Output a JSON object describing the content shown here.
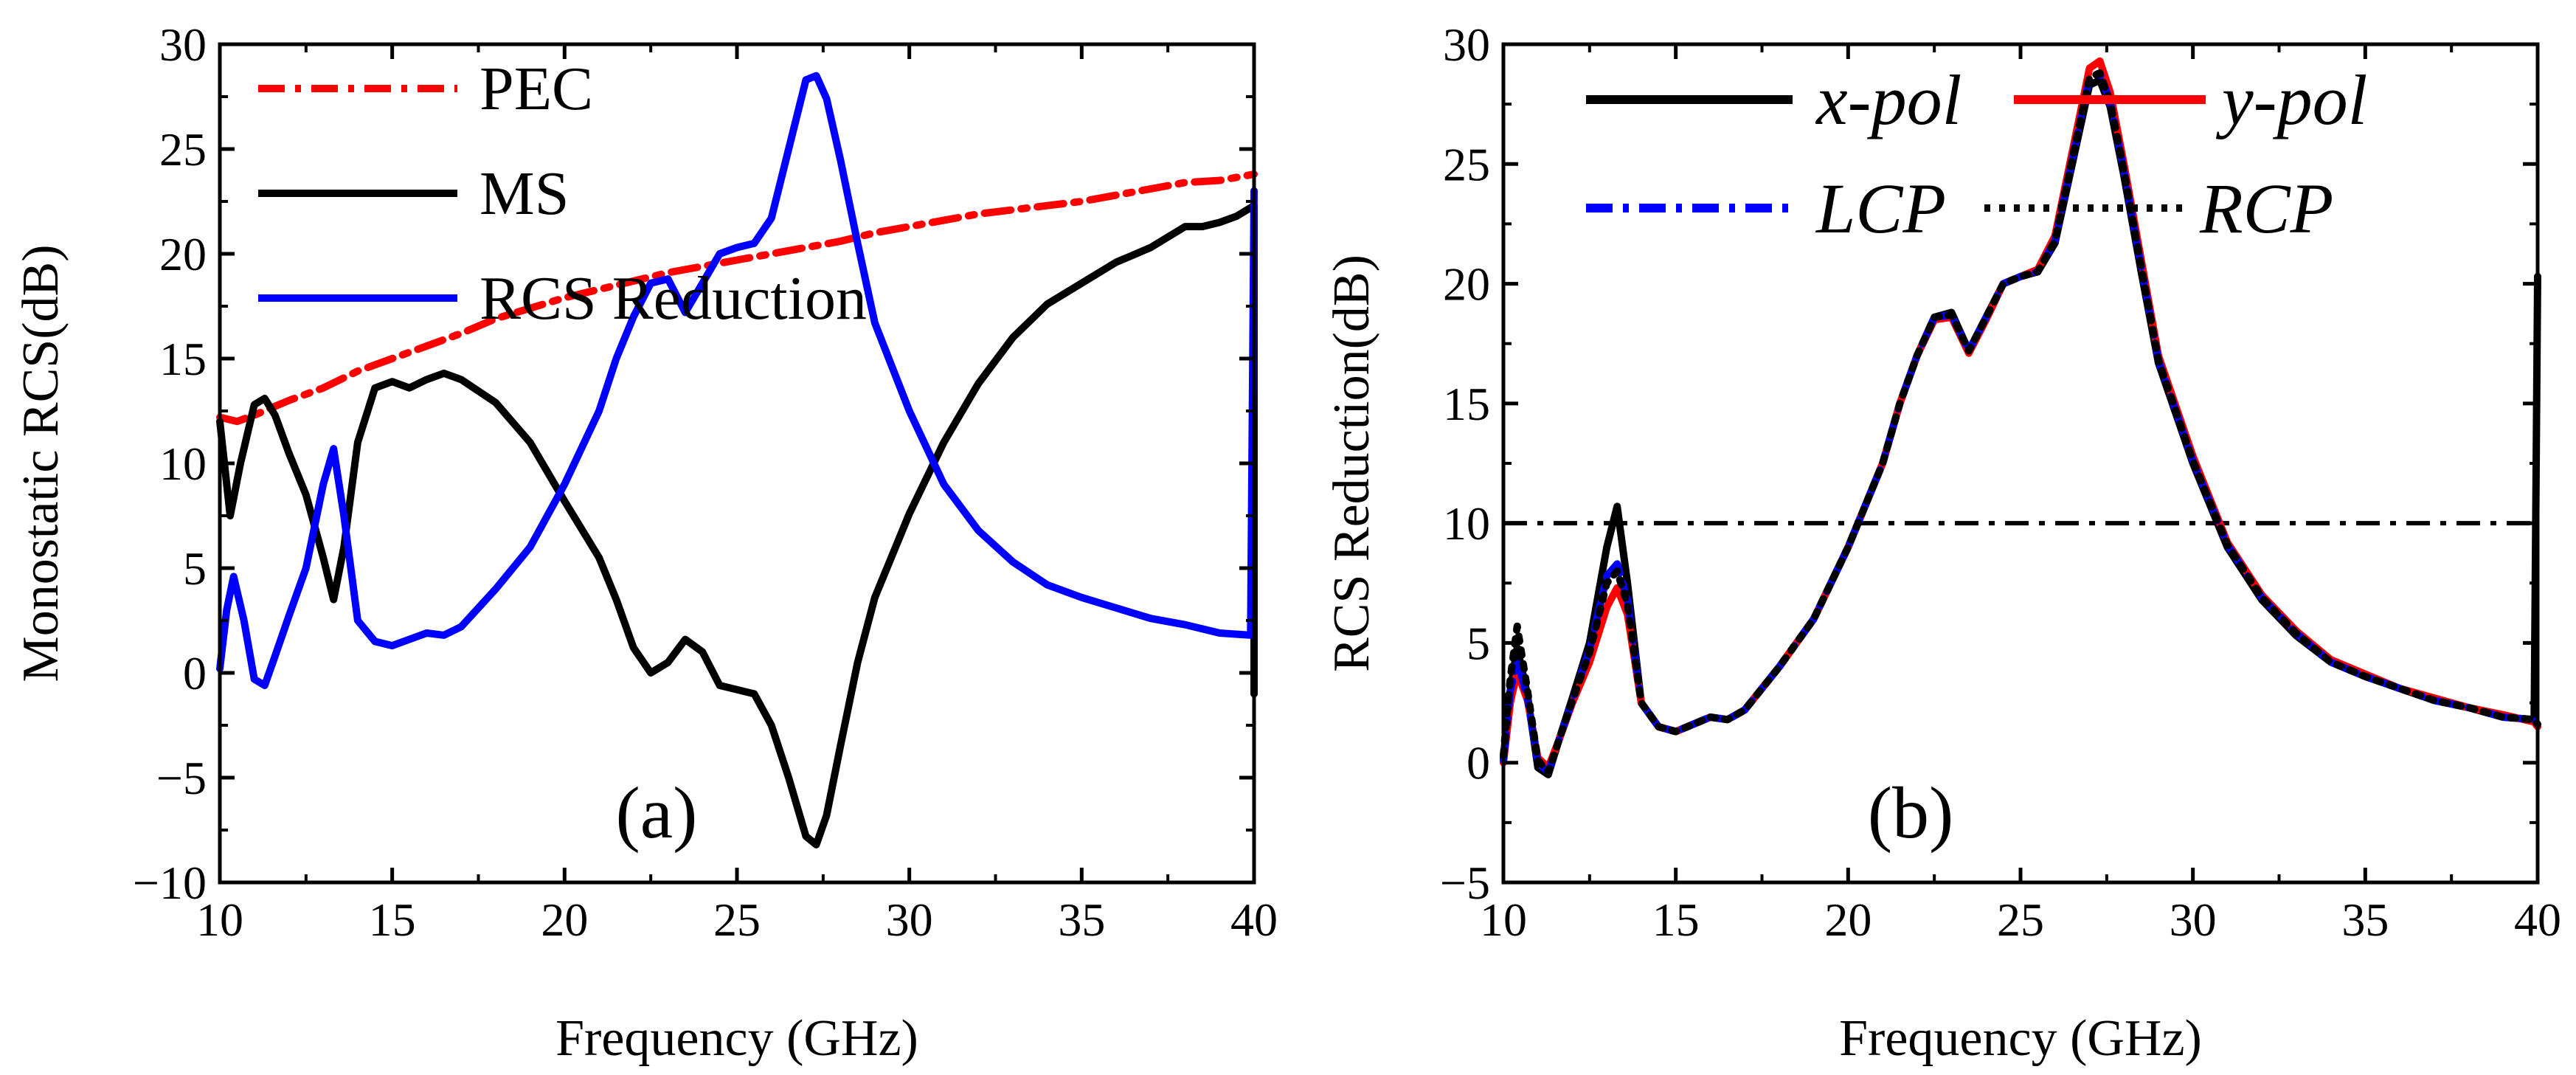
{
  "chart_data": [
    {
      "type": "line",
      "panel_label": "(a)",
      "title": "",
      "xlabel": "Frequency (GHz)",
      "ylabel": "Monostatic RCS(dB)",
      "xlim": [
        10,
        40
      ],
      "ylim": [
        -10,
        30
      ],
      "xticks": [
        10,
        15,
        20,
        25,
        30,
        35,
        40
      ],
      "yticks": [
        -10,
        -5,
        0,
        5,
        10,
        15,
        20,
        25,
        30
      ],
      "xtick_labels": [
        "10",
        "15",
        "20",
        "25",
        "30",
        "35",
        "40"
      ],
      "ytick_labels": [
        "−10",
        "−5",
        "0",
        "5",
        "10",
        "15",
        "20",
        "25",
        "30"
      ],
      "grid": false,
      "legend_position": "top-left",
      "series": [
        {
          "name": "PEC",
          "color": "#ff0000",
          "dash": "dash-dot",
          "x": [
            10,
            10.5,
            11,
            12,
            13,
            14,
            15,
            16,
            17,
            18,
            19,
            20,
            21,
            22,
            23,
            24,
            25,
            26,
            27,
            28,
            29,
            30,
            31,
            32,
            33,
            34,
            35,
            36,
            37,
            38,
            39,
            40
          ],
          "y": [
            12.2,
            12.0,
            12.3,
            13.0,
            13.6,
            14.4,
            15.0,
            15.6,
            16.2,
            16.9,
            17.4,
            17.9,
            18.3,
            18.7,
            19.1,
            19.4,
            19.7,
            20.0,
            20.3,
            20.6,
            21.0,
            21.3,
            21.6,
            21.9,
            22.1,
            22.3,
            22.5,
            22.8,
            23.1,
            23.4,
            23.5,
            23.8
          ]
        },
        {
          "name": "MS",
          "color": "#000000",
          "dash": "solid",
          "x": [
            10,
            10.3,
            10.6,
            11,
            11.3,
            11.6,
            12,
            12.5,
            13,
            13.3,
            13.6,
            14,
            14.5,
            15,
            15.5,
            16,
            16.5,
            17,
            18,
            19,
            20,
            21,
            21.5,
            22,
            22.5,
            23,
            23.5,
            24,
            24.5,
            25,
            25.5,
            26,
            26.5,
            27,
            27.3,
            27.6,
            28,
            28.5,
            29,
            30,
            31,
            32,
            33,
            34,
            35,
            36,
            37,
            38,
            38.5,
            39,
            39.5,
            40,
            40
          ],
          "y": [
            12,
            7.5,
            10,
            12.8,
            13.1,
            12.3,
            10.5,
            8.5,
            5.5,
            3.5,
            6,
            11,
            13.6,
            13.9,
            13.6,
            14.0,
            14.3,
            14.0,
            12.9,
            11.0,
            8.2,
            5.5,
            3.5,
            1.2,
            0.0,
            0.5,
            1.6,
            1.0,
            -0.6,
            -0.8,
            -1.0,
            -2.5,
            -5.0,
            -7.8,
            -8.2,
            -6.8,
            -3.5,
            0.5,
            3.6,
            7.6,
            11.0,
            13.8,
            16.0,
            17.6,
            18.6,
            19.6,
            20.3,
            21.3,
            21.3,
            21.5,
            21.8,
            22.3,
            -1.0
          ]
        },
        {
          "name": "RCS Reduction",
          "color": "#0000ff",
          "dash": "solid",
          "x": [
            10,
            10.2,
            10.4,
            10.7,
            11,
            11.3,
            11.6,
            12,
            12.5,
            13,
            13.3,
            13.6,
            14,
            14.5,
            15,
            15.5,
            16,
            16.5,
            17,
            18,
            19,
            20,
            21,
            21.5,
            22,
            22.5,
            23,
            23.5,
            24,
            24.5,
            25,
            25.5,
            26,
            26.5,
            27,
            27.3,
            27.6,
            28,
            28.5,
            29,
            30,
            31,
            32,
            33,
            34,
            35,
            36,
            37,
            38,
            39,
            39.9,
            40
          ],
          "y": [
            0.2,
            3.0,
            4.6,
            2.5,
            -0.3,
            -0.6,
            0.8,
            2.7,
            5.0,
            9.0,
            10.7,
            7.5,
            2.5,
            1.5,
            1.3,
            1.6,
            1.9,
            1.8,
            2.2,
            4.0,
            6.0,
            9.0,
            12.5,
            15.0,
            17.0,
            18.6,
            18.8,
            17.2,
            18.6,
            20.0,
            20.3,
            20.5,
            21.7,
            25.0,
            28.3,
            28.5,
            27.4,
            24.5,
            20.5,
            16.7,
            12.5,
            9.0,
            6.8,
            5.3,
            4.2,
            3.6,
            3.1,
            2.6,
            2.3,
            1.9,
            1.8,
            23.0
          ]
        }
      ]
    },
    {
      "type": "line",
      "panel_label": "(b)",
      "title": "",
      "xlabel": "Frequency (GHz)",
      "ylabel": "RCS Reduction(dB)",
      "xlim": [
        10,
        40
      ],
      "ylim": [
        -5,
        30
      ],
      "xticks": [
        10,
        15,
        20,
        25,
        30,
        35,
        40
      ],
      "yticks": [
        -5,
        0,
        5,
        10,
        15,
        20,
        25,
        30
      ],
      "xtick_labels": [
        "10",
        "15",
        "20",
        "25",
        "30",
        "35",
        "40"
      ],
      "ytick_labels": [
        "−5",
        "0",
        "5",
        "10",
        "15",
        "20",
        "25",
        "30"
      ],
      "grid": false,
      "legend_position": "top",
      "reference_line": {
        "y": 10,
        "color": "#000000",
        "dash": "dash-dot"
      },
      "series": [
        {
          "name": "x-pol",
          "color": "#000000",
          "dash": "solid",
          "x": [
            10,
            10.2,
            10.4,
            10.7,
            11,
            11.3,
            11.6,
            12,
            12.5,
            13,
            13.3,
            13.6,
            14,
            14.5,
            15,
            15.5,
            16,
            16.5,
            17,
            18,
            19,
            20,
            21,
            21.5,
            22,
            22.5,
            23,
            23.5,
            24,
            24.5,
            25,
            25.5,
            26,
            26.5,
            27,
            27.3,
            27.6,
            28,
            28.5,
            29,
            30,
            31,
            32,
            33,
            34,
            35,
            36,
            37,
            38,
            39,
            39.9,
            40
          ],
          "y": [
            0.2,
            3.0,
            4.8,
            2.8,
            -0.2,
            -0.5,
            0.9,
            2.7,
            5.0,
            9.0,
            10.7,
            7.5,
            2.5,
            1.5,
            1.3,
            1.6,
            1.9,
            1.8,
            2.2,
            4.0,
            6.0,
            9.0,
            12.5,
            15.0,
            17.0,
            18.6,
            18.8,
            17.2,
            18.6,
            20.0,
            20.3,
            20.5,
            21.7,
            25.0,
            28.3,
            28.5,
            27.4,
            24.5,
            20.5,
            16.7,
            12.5,
            9.0,
            6.8,
            5.3,
            4.2,
            3.6,
            3.1,
            2.6,
            2.3,
            1.9,
            1.8,
            20.3
          ]
        },
        {
          "name": "y-pol",
          "color": "#ff0000",
          "dash": "solid",
          "x": [
            10,
            10.2,
            10.4,
            10.7,
            11,
            11.3,
            11.6,
            12,
            12.5,
            13,
            13.3,
            13.6,
            14,
            14.5,
            15,
            15.5,
            16,
            16.5,
            17,
            18,
            19,
            20,
            21,
            21.5,
            22,
            22.5,
            23,
            23.5,
            24,
            24.5,
            25,
            25.5,
            26,
            26.5,
            27,
            27.3,
            27.6,
            28,
            28.5,
            29,
            30,
            31,
            32,
            33,
            34,
            35,
            36,
            37,
            38,
            39,
            39.9,
            40
          ],
          "y": [
            0.0,
            2.5,
            3.8,
            2.6,
            0.2,
            -0.2,
            0.9,
            2.5,
            4.2,
            6.5,
            7.3,
            6.2,
            2.5,
            1.5,
            1.3,
            1.6,
            1.9,
            1.8,
            2.2,
            4.0,
            6.0,
            9.0,
            12.5,
            15.0,
            17.0,
            18.5,
            18.6,
            17.1,
            18.5,
            20.0,
            20.3,
            20.6,
            22.0,
            25.5,
            29.0,
            29.3,
            28.0,
            25.0,
            21.0,
            17.0,
            12.8,
            9.2,
            7.0,
            5.5,
            4.3,
            3.7,
            3.1,
            2.7,
            2.3,
            2.0,
            1.7,
            1.5
          ]
        },
        {
          "name": "LCP",
          "color": "#0000ff",
          "dash": "dash-dot",
          "x": [
            10,
            10.2,
            10.4,
            10.7,
            11,
            11.3,
            11.6,
            12,
            12.5,
            13,
            13.3,
            13.6,
            14,
            14.5,
            15,
            15.5,
            16,
            16.5,
            17,
            18,
            19,
            20,
            21,
            21.5,
            22,
            22.5,
            23,
            23.5,
            24,
            24.5,
            25,
            25.5,
            26,
            26.5,
            27,
            27.3,
            27.6,
            28,
            28.5,
            29,
            30,
            31,
            32,
            33,
            34,
            35,
            36,
            37,
            38,
            39,
            39.9,
            40
          ],
          "y": [
            0.1,
            3.0,
            4.3,
            2.7,
            0.0,
            -0.4,
            0.9,
            2.6,
            4.7,
            7.8,
            8.3,
            6.8,
            2.5,
            1.5,
            1.3,
            1.6,
            1.9,
            1.8,
            2.2,
            4.0,
            6.0,
            9.0,
            12.5,
            15.0,
            17.0,
            18.6,
            18.7,
            17.2,
            18.6,
            20.0,
            20.3,
            20.5,
            21.8,
            25.2,
            28.6,
            28.8,
            27.6,
            24.7,
            20.7,
            16.8,
            12.6,
            9.1,
            6.9,
            5.4,
            4.2,
            3.6,
            3.1,
            2.6,
            2.3,
            1.9,
            1.8,
            1.6
          ]
        },
        {
          "name": "RCP",
          "color": "#000000",
          "dash": "dot",
          "x": [
            10,
            10.2,
            10.4,
            10.7,
            11,
            11.3,
            11.6,
            12,
            12.5,
            13,
            13.3,
            13.6,
            14,
            14.5,
            15,
            15.5,
            16,
            16.5,
            17,
            18,
            19,
            20,
            21,
            21.5,
            22,
            22.5,
            23,
            23.5,
            24,
            24.5,
            25,
            25.5,
            26,
            26.5,
            27,
            27.3,
            27.6,
            28,
            28.5,
            29,
            30,
            31,
            32,
            33,
            34,
            35,
            36,
            37,
            38,
            39,
            39.9,
            40
          ],
          "y": [
            0.3,
            3.5,
            5.7,
            3.0,
            0.1,
            -0.4,
            0.9,
            2.6,
            4.6,
            7.5,
            8.0,
            6.6,
            2.5,
            1.5,
            1.3,
            1.6,
            1.9,
            1.8,
            2.2,
            4.0,
            6.0,
            9.0,
            12.5,
            15.0,
            17.0,
            18.6,
            18.7,
            17.2,
            18.6,
            20.0,
            20.3,
            20.5,
            21.8,
            25.2,
            28.6,
            28.8,
            27.6,
            24.7,
            20.7,
            16.8,
            12.6,
            9.1,
            6.9,
            5.4,
            4.2,
            3.6,
            3.1,
            2.6,
            2.3,
            1.9,
            1.8,
            1.6
          ]
        }
      ]
    }
  ]
}
